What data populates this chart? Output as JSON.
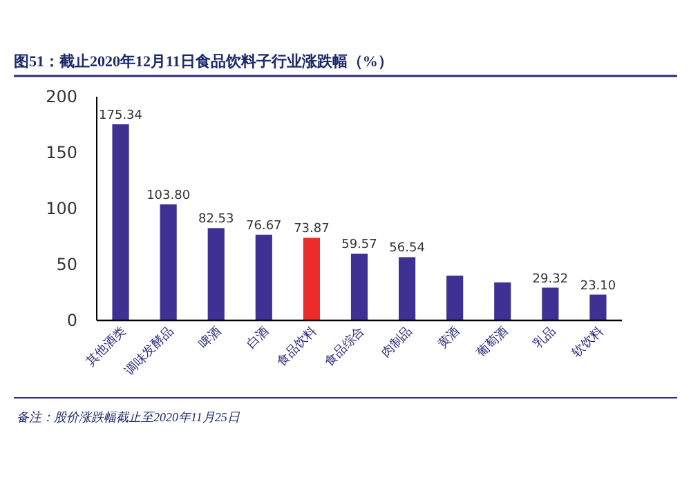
{
  "chart_data": {
    "type": "bar",
    "title": "图51：截止2020年12月11日食品饮料子行业涨跌幅（%）",
    "categories": [
      "其他酒类",
      "调味发酵品",
      "啤酒",
      "白酒",
      "食品饮料",
      "食品综合",
      "肉制品",
      "黄酒",
      "葡萄酒",
      "乳品",
      "软饮料"
    ],
    "values": [
      175.34,
      103.8,
      82.53,
      76.67,
      73.87,
      59.57,
      56.54,
      40,
      34,
      29.32,
      23.1
    ],
    "colors": [
      "#3f3093",
      "#3f3093",
      "#3f3093",
      "#3f3093",
      "#ee2b2b",
      "#3f3093",
      "#3f3093",
      "#3f3093",
      "#3f3093",
      "#3f3093",
      "#3f3093"
    ],
    "value_labels": [
      "175.34",
      "103.80",
      "82.53",
      "76.67",
      "73.87",
      "59.57",
      "56.54",
      null,
      null,
      "29.32",
      "23.10"
    ],
    "ylim": [
      0,
      200
    ],
    "yticks": [
      0,
      50,
      100,
      150,
      200
    ],
    "annotations": [
      "备注：股价涨跌幅截止至2020年11月25日"
    ]
  }
}
